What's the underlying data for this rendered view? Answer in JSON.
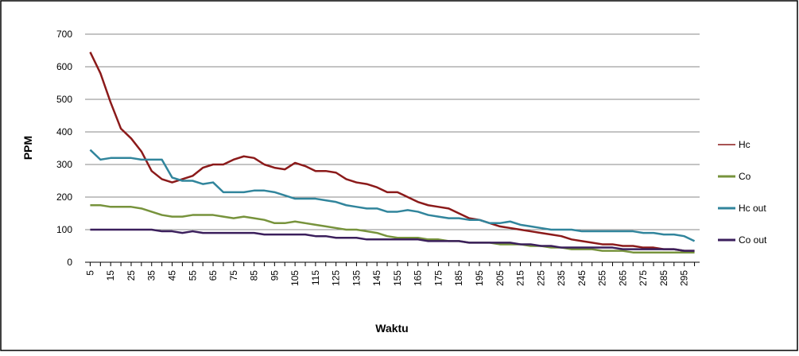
{
  "chart_data": {
    "type": "line",
    "x_label": "Waktu",
    "y_label": "PPM",
    "categories": [
      "5",
      null,
      "15",
      null,
      "25",
      null,
      "35",
      null,
      "45",
      null,
      "55",
      null,
      "65",
      null,
      "75",
      null,
      "85",
      null,
      "95",
      null,
      "105",
      null,
      "115",
      null,
      "125",
      null,
      "135",
      null,
      "145",
      null,
      "155",
      null,
      "165",
      null,
      "175",
      null,
      "185",
      null,
      "195",
      null,
      "205",
      null,
      "215",
      null,
      "225",
      null,
      "235",
      null,
      "245",
      null,
      "255",
      null,
      "265",
      null,
      "275",
      null,
      "285",
      null,
      "295",
      null
    ],
    "ylim": [
      0,
      700
    ],
    "yticks": [
      0,
      100,
      200,
      300,
      400,
      500,
      600,
      700
    ],
    "grid": true,
    "legend": "right",
    "series": [
      {
        "name": "Hc",
        "color": "#8b1a1a",
        "values": [
          645,
          580,
          490,
          410,
          380,
          340,
          280,
          255,
          245,
          255,
          265,
          290,
          300,
          300,
          315,
          325,
          320,
          300,
          290,
          285,
          305,
          295,
          280,
          280,
          275,
          255,
          245,
          240,
          230,
          215,
          215,
          200,
          185,
          175,
          170,
          165,
          150,
          135,
          130,
          120,
          110,
          105,
          100,
          95,
          90,
          85,
          80,
          70,
          65,
          60,
          55,
          55,
          50,
          50,
          45,
          45,
          40,
          40,
          35,
          35
        ]
      },
      {
        "name": "Co",
        "color": "#77933c",
        "values": [
          175,
          175,
          170,
          170,
          170,
          165,
          155,
          145,
          140,
          140,
          145,
          145,
          145,
          140,
          135,
          140,
          135,
          130,
          120,
          120,
          125,
          120,
          115,
          110,
          105,
          100,
          100,
          95,
          90,
          80,
          75,
          75,
          75,
          70,
          70,
          65,
          65,
          60,
          60,
          60,
          55,
          55,
          55,
          50,
          50,
          45,
          45,
          40,
          40,
          40,
          35,
          35,
          35,
          30,
          30,
          30,
          30,
          30,
          30,
          30
        ]
      },
      {
        "name": "Hc out",
        "color": "#31859c",
        "values": [
          345,
          315,
          320,
          320,
          320,
          315,
          315,
          315,
          260,
          250,
          250,
          240,
          245,
          215,
          215,
          215,
          220,
          220,
          215,
          205,
          195,
          195,
          195,
          190,
          185,
          175,
          170,
          165,
          165,
          155,
          155,
          160,
          155,
          145,
          140,
          135,
          135,
          130,
          130,
          120,
          120,
          125,
          115,
          110,
          105,
          100,
          100,
          100,
          95,
          95,
          95,
          95,
          95,
          95,
          90,
          90,
          85,
          85,
          80,
          65
        ]
      },
      {
        "name": "Co out",
        "color": "#3b1f5c",
        "values": [
          100,
          100,
          100,
          100,
          100,
          100,
          100,
          95,
          95,
          90,
          95,
          90,
          90,
          90,
          90,
          90,
          90,
          85,
          85,
          85,
          85,
          85,
          80,
          80,
          75,
          75,
          75,
          70,
          70,
          70,
          70,
          70,
          70,
          65,
          65,
          65,
          65,
          60,
          60,
          60,
          60,
          60,
          55,
          55,
          50,
          50,
          45,
          45,
          45,
          45,
          45,
          45,
          40,
          40,
          40,
          40,
          40,
          40,
          35,
          35
        ]
      }
    ]
  }
}
